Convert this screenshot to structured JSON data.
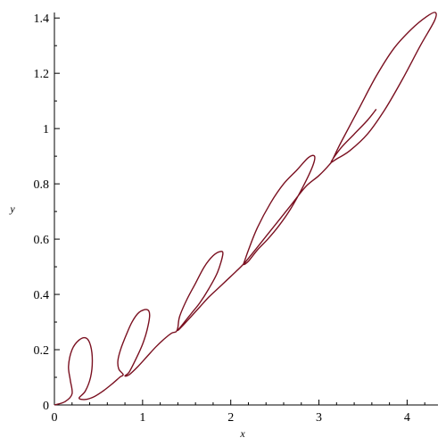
{
  "chart_data": {
    "type": "line",
    "xlabel": "x",
    "ylabel": "y",
    "xlim": [
      0,
      4.35
    ],
    "ylim": [
      0,
      1.42
    ],
    "x_ticks": [
      "0",
      "1",
      "2",
      "3",
      "4"
    ],
    "y_ticks": [
      "0",
      "0.2",
      "0.4",
      "0.6",
      "0.8",
      "1",
      "1.2",
      "1.4"
    ],
    "grid": false,
    "series": [
      {
        "color": "#7a1020",
        "points": [
          [
            0.0,
            0.0
          ],
          [
            0.12,
            0.012
          ],
          [
            0.2,
            0.04
          ],
          [
            0.18,
            0.09
          ],
          [
            0.16,
            0.14
          ],
          [
            0.2,
            0.2
          ],
          [
            0.28,
            0.235
          ],
          [
            0.36,
            0.242
          ],
          [
            0.41,
            0.215
          ],
          [
            0.43,
            0.16
          ],
          [
            0.41,
            0.1
          ],
          [
            0.35,
            0.05
          ],
          [
            0.28,
            0.025
          ],
          [
            0.35,
            0.02
          ],
          [
            0.45,
            0.03
          ],
          [
            0.55,
            0.05
          ],
          [
            0.65,
            0.075
          ],
          [
            0.74,
            0.1
          ],
          [
            0.78,
            0.11
          ],
          [
            0.73,
            0.13
          ],
          [
            0.72,
            0.16
          ],
          [
            0.75,
            0.2
          ],
          [
            0.81,
            0.25
          ],
          [
            0.88,
            0.3
          ],
          [
            0.96,
            0.335
          ],
          [
            1.05,
            0.345
          ],
          [
            1.08,
            0.325
          ],
          [
            1.05,
            0.27
          ],
          [
            1.0,
            0.22
          ],
          [
            0.93,
            0.17
          ],
          [
            0.85,
            0.12
          ],
          [
            0.8,
            0.105
          ],
          [
            0.85,
            0.11
          ],
          [
            0.95,
            0.14
          ],
          [
            1.05,
            0.175
          ],
          [
            1.15,
            0.21
          ],
          [
            1.25,
            0.24
          ],
          [
            1.33,
            0.26
          ],
          [
            1.38,
            0.265
          ],
          [
            1.4,
            0.28
          ],
          [
            1.42,
            0.32
          ],
          [
            1.5,
            0.38
          ],
          [
            1.6,
            0.44
          ],
          [
            1.7,
            0.5
          ],
          [
            1.8,
            0.54
          ],
          [
            1.88,
            0.555
          ],
          [
            1.91,
            0.545
          ],
          [
            1.85,
            0.48
          ],
          [
            1.75,
            0.42
          ],
          [
            1.65,
            0.37
          ],
          [
            1.55,
            0.33
          ],
          [
            1.45,
            0.29
          ],
          [
            1.4,
            0.27
          ],
          [
            1.45,
            0.285
          ],
          [
            1.55,
            0.32
          ],
          [
            1.65,
            0.355
          ],
          [
            1.75,
            0.39
          ],
          [
            1.85,
            0.42
          ],
          [
            1.95,
            0.45
          ],
          [
            2.05,
            0.48
          ],
          [
            2.13,
            0.505
          ],
          [
            2.15,
            0.515
          ],
          [
            2.2,
            0.56
          ],
          [
            2.3,
            0.64
          ],
          [
            2.45,
            0.73
          ],
          [
            2.6,
            0.8
          ],
          [
            2.75,
            0.85
          ],
          [
            2.88,
            0.895
          ],
          [
            2.95,
            0.9
          ],
          [
            2.93,
            0.865
          ],
          [
            2.82,
            0.79
          ],
          [
            2.68,
            0.71
          ],
          [
            2.55,
            0.65
          ],
          [
            2.42,
            0.6
          ],
          [
            2.3,
            0.56
          ],
          [
            2.2,
            0.52
          ],
          [
            2.15,
            0.51
          ],
          [
            2.25,
            0.55
          ],
          [
            2.4,
            0.61
          ],
          [
            2.55,
            0.67
          ],
          [
            2.7,
            0.73
          ],
          [
            2.85,
            0.79
          ],
          [
            3.0,
            0.83
          ],
          [
            3.12,
            0.87
          ],
          [
            3.15,
            0.885
          ],
          [
            3.25,
            0.95
          ],
          [
            3.45,
            1.07
          ],
          [
            3.65,
            1.19
          ],
          [
            3.85,
            1.29
          ],
          [
            4.05,
            1.36
          ],
          [
            4.22,
            1.405
          ],
          [
            4.32,
            1.42
          ],
          [
            4.31,
            1.39
          ],
          [
            4.15,
            1.3
          ],
          [
            3.95,
            1.18
          ],
          [
            3.75,
            1.07
          ],
          [
            3.55,
            0.98
          ],
          [
            3.35,
            0.92
          ],
          [
            3.2,
            0.89
          ],
          [
            3.14,
            0.88
          ],
          [
            3.25,
            0.93
          ],
          [
            3.4,
            0.98
          ],
          [
            3.55,
            1.03
          ],
          [
            3.65,
            1.07
          ]
        ]
      }
    ]
  }
}
